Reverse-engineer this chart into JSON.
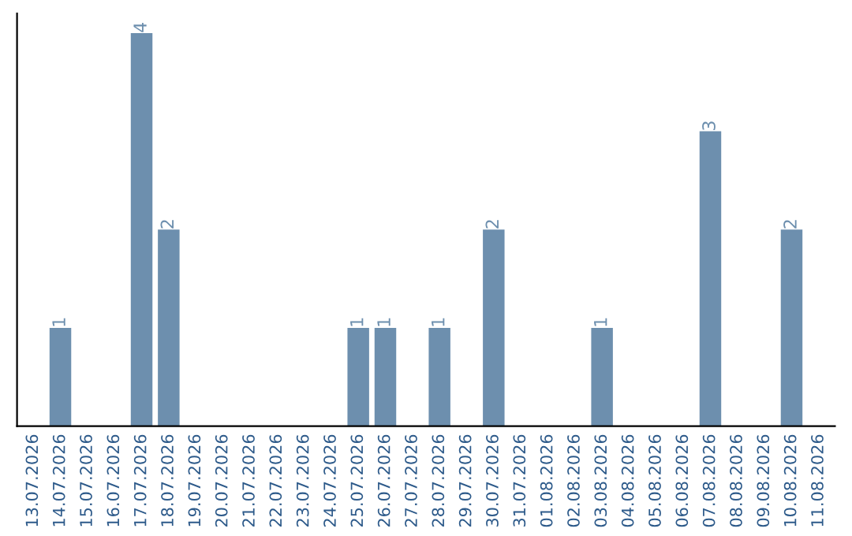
{
  "chart_data": {
    "type": "bar",
    "categories": [
      "13.07.2026",
      "14.07.2026",
      "15.07.2026",
      "16.07.2026",
      "17.07.2026",
      "18.07.2026",
      "19.07.2026",
      "20.07.2026",
      "21.07.2026",
      "22.07.2026",
      "23.07.2026",
      "24.07.2026",
      "25.07.2026",
      "26.07.2026",
      "27.07.2026",
      "28.07.2026",
      "29.07.2026",
      "30.07.2026",
      "31.07.2026",
      "01.08.2026",
      "02.08.2026",
      "03.08.2026",
      "04.08.2026",
      "05.08.2026",
      "06.08.2026",
      "07.08.2026",
      "08.08.2026",
      "09.08.2026",
      "10.08.2026",
      "11.08.2026"
    ],
    "values": [
      0,
      1,
      0,
      0,
      4,
      2,
      0,
      0,
      0,
      0,
      0,
      0,
      1,
      1,
      0,
      1,
      0,
      2,
      0,
      0,
      0,
      1,
      0,
      0,
      0,
      3,
      0,
      0,
      2,
      0
    ],
    "value_labels": [
      null,
      "1",
      null,
      null,
      "4",
      "2",
      null,
      null,
      null,
      null,
      null,
      null,
      "1",
      "1",
      null,
      "1",
      null,
      "2",
      null,
      null,
      null,
      "1",
      null,
      null,
      null,
      "3",
      null,
      null,
      "2",
      null
    ],
    "color": "#6d8fae",
    "ylim": [
      0,
      4.2
    ],
    "tick_labels": "x",
    "grid": false,
    "legend": false
  }
}
